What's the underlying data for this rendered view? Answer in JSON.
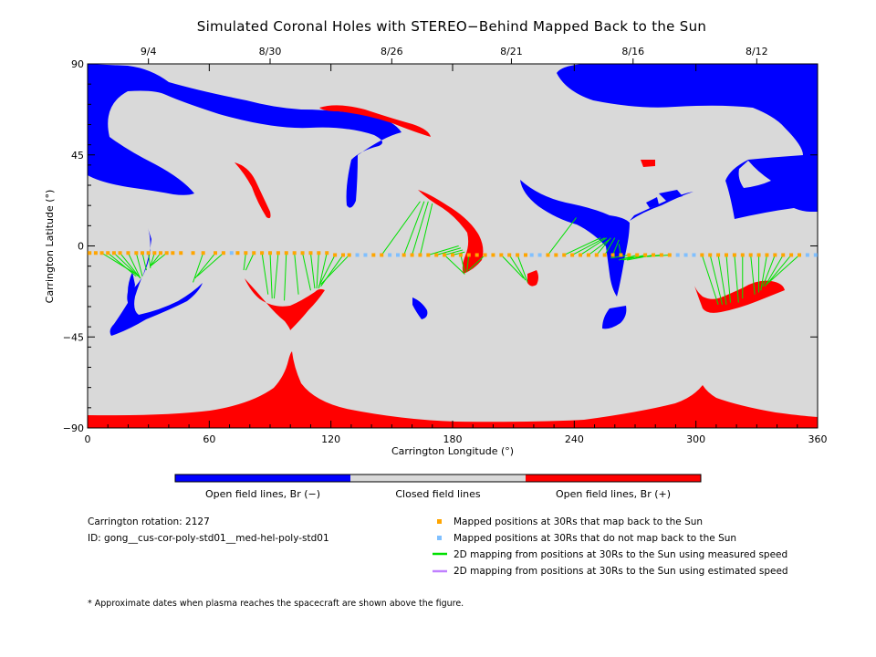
{
  "title": "Simulated Coronal Holes with STEREO−Behind Mapped Back to the Sun",
  "chart_data": {
    "type": "map",
    "xlabel": "Carrington Longitude (°)",
    "ylabel": "Carrington Latitude (°)",
    "xlim": [
      0,
      360
    ],
    "ylim": [
      -90,
      90
    ],
    "x_ticks": [
      "0",
      "60",
      "120",
      "180",
      "240",
      "300",
      "360"
    ],
    "y_ticks": [
      "90",
      "45",
      "0",
      "−45",
      "−90"
    ],
    "top_axis": [
      {
        "label": "9/4",
        "lon": 30
      },
      {
        "label": "8/30",
        "lon": 90
      },
      {
        "label": "8/26",
        "lon": 150
      },
      {
        "label": "8/21",
        "lon": 209
      },
      {
        "label": "8/16",
        "lon": 269
      },
      {
        "label": "8/12",
        "lon": 330
      }
    ],
    "colors": {
      "closed": "#d9d9d9",
      "open_negative": "#0000ff",
      "open_positive": "#ff0000",
      "mapped": "#ffa500",
      "unmapped": "#80c0ff",
      "measured_line": "#00e000",
      "estimated_line": "#c080ff"
    },
    "mapped_points": [
      {
        "lon": 1,
        "lat": -3.5,
        "maps": true
      },
      {
        "lon": 4,
        "lat": -3.5,
        "maps": true
      },
      {
        "lon": 7,
        "lat": -3.5,
        "maps": true
      },
      {
        "lon": 10,
        "lat": -3.5,
        "maps": true
      },
      {
        "lon": 13,
        "lat": -3.5,
        "maps": true
      },
      {
        "lon": 16,
        "lat": -3.5,
        "maps": true
      },
      {
        "lon": 20,
        "lat": -3.5,
        "maps": true
      },
      {
        "lon": 24,
        "lat": -3.5,
        "maps": true
      },
      {
        "lon": 27,
        "lat": -3.5,
        "maps": true
      },
      {
        "lon": 30,
        "lat": -3.5,
        "maps": true
      },
      {
        "lon": 33,
        "lat": -3.5,
        "maps": true
      },
      {
        "lon": 36,
        "lat": -3.5,
        "maps": true
      },
      {
        "lon": 39,
        "lat": -3.5,
        "maps": true
      },
      {
        "lon": 42,
        "lat": -3.5,
        "maps": true
      },
      {
        "lon": 46,
        "lat": -3.5,
        "maps": true
      },
      {
        "lon": 52,
        "lat": -3.5,
        "maps": true
      },
      {
        "lon": 57,
        "lat": -3.5,
        "maps": true
      },
      {
        "lon": 63,
        "lat": -3.5,
        "maps": true
      },
      {
        "lon": 67,
        "lat": -3.5,
        "maps": true
      },
      {
        "lon": 71,
        "lat": -3.5,
        "maps": false
      },
      {
        "lon": 74,
        "lat": -3.5,
        "maps": true
      },
      {
        "lon": 78,
        "lat": -3.5,
        "maps": true
      },
      {
        "lon": 82,
        "lat": -3.5,
        "maps": true
      },
      {
        "lon": 86,
        "lat": -3.5,
        "maps": true
      },
      {
        "lon": 90,
        "lat": -3.5,
        "maps": true
      },
      {
        "lon": 94,
        "lat": -3.5,
        "maps": true
      },
      {
        "lon": 98,
        "lat": -3.5,
        "maps": true
      },
      {
        "lon": 102,
        "lat": -3.5,
        "maps": true
      },
      {
        "lon": 106,
        "lat": -3.5,
        "maps": true
      },
      {
        "lon": 110,
        "lat": -3.5,
        "maps": true
      },
      {
        "lon": 114,
        "lat": -3.5,
        "maps": true
      },
      {
        "lon": 118,
        "lat": -3.5,
        "maps": true
      },
      {
        "lon": 122,
        "lat": -4.5,
        "maps": true
      },
      {
        "lon": 126,
        "lat": -4.5,
        "maps": true
      },
      {
        "lon": 129,
        "lat": -4.5,
        "maps": true
      },
      {
        "lon": 133,
        "lat": -4.5,
        "maps": false
      },
      {
        "lon": 137,
        "lat": -4.5,
        "maps": false
      },
      {
        "lon": 141,
        "lat": -4.5,
        "maps": true
      },
      {
        "lon": 145,
        "lat": -4.5,
        "maps": true
      },
      {
        "lon": 149,
        "lat": -4.5,
        "maps": false
      },
      {
        "lon": 153,
        "lat": -4.5,
        "maps": false
      },
      {
        "lon": 156,
        "lat": -4.5,
        "maps": true
      },
      {
        "lon": 160,
        "lat": -4.5,
        "maps": true
      },
      {
        "lon": 164,
        "lat": -4.5,
        "maps": true
      },
      {
        "lon": 168,
        "lat": -4.5,
        "maps": true
      },
      {
        "lon": 172,
        "lat": -4.5,
        "maps": true
      },
      {
        "lon": 176,
        "lat": -4.5,
        "maps": true
      },
      {
        "lon": 180,
        "lat": -4.5,
        "maps": true
      },
      {
        "lon": 184,
        "lat": -4.5,
        "maps": true
      },
      {
        "lon": 188,
        "lat": -4.5,
        "maps": true
      },
      {
        "lon": 192,
        "lat": -4.5,
        "maps": true
      },
      {
        "lon": 196,
        "lat": -4.5,
        "maps": true
      },
      {
        "lon": 200,
        "lat": -4.5,
        "maps": true
      },
      {
        "lon": 204,
        "lat": -4.5,
        "maps": true
      },
      {
        "lon": 208,
        "lat": -4.5,
        "maps": true
      },
      {
        "lon": 212,
        "lat": -4.5,
        "maps": true
      },
      {
        "lon": 216,
        "lat": -4.5,
        "maps": true
      },
      {
        "lon": 219,
        "lat": -4.5,
        "maps": false
      },
      {
        "lon": 223,
        "lat": -4.5,
        "maps": false
      },
      {
        "lon": 227,
        "lat": -4.5,
        "maps": true
      },
      {
        "lon": 231,
        "lat": -4.5,
        "maps": true
      },
      {
        "lon": 235,
        "lat": -4.5,
        "maps": true
      },
      {
        "lon": 239,
        "lat": -4.5,
        "maps": true
      },
      {
        "lon": 243,
        "lat": -4.5,
        "maps": true
      },
      {
        "lon": 247,
        "lat": -4.5,
        "maps": true
      },
      {
        "lon": 251,
        "lat": -4.5,
        "maps": true
      },
      {
        "lon": 255,
        "lat": -4.5,
        "maps": true
      },
      {
        "lon": 259,
        "lat": -4.5,
        "maps": true
      },
      {
        "lon": 263,
        "lat": -4.5,
        "maps": true
      },
      {
        "lon": 267,
        "lat": -4.5,
        "maps": true
      },
      {
        "lon": 271,
        "lat": -4.5,
        "maps": true
      },
      {
        "lon": 275,
        "lat": -4.5,
        "maps": true
      },
      {
        "lon": 279,
        "lat": -4.5,
        "maps": true
      },
      {
        "lon": 283,
        "lat": -4.5,
        "maps": true
      },
      {
        "lon": 287,
        "lat": -4.5,
        "maps": true
      },
      {
        "lon": 291,
        "lat": -4.5,
        "maps": false
      },
      {
        "lon": 295,
        "lat": -4.5,
        "maps": false
      },
      {
        "lon": 299,
        "lat": -4.5,
        "maps": false
      },
      {
        "lon": 303,
        "lat": -4.5,
        "maps": true
      },
      {
        "lon": 307,
        "lat": -4.5,
        "maps": true
      },
      {
        "lon": 311,
        "lat": -4.5,
        "maps": true
      },
      {
        "lon": 315,
        "lat": -4.5,
        "maps": true
      },
      {
        "lon": 319,
        "lat": -4.5,
        "maps": true
      },
      {
        "lon": 323,
        "lat": -4.5,
        "maps": true
      },
      {
        "lon": 327,
        "lat": -4.5,
        "maps": true
      },
      {
        "lon": 331,
        "lat": -4.5,
        "maps": true
      },
      {
        "lon": 335,
        "lat": -4.5,
        "maps": true
      },
      {
        "lon": 339,
        "lat": -4.5,
        "maps": true
      },
      {
        "lon": 343,
        "lat": -4.5,
        "maps": true
      },
      {
        "lon": 347,
        "lat": -4.5,
        "maps": true
      },
      {
        "lon": 351,
        "lat": -4.5,
        "maps": true
      },
      {
        "lon": 355,
        "lat": -4.5,
        "maps": false
      },
      {
        "lon": 359,
        "lat": -4.5,
        "maps": false
      }
    ],
    "mapping_lines": [
      {
        "from": [
          7,
          -3.5
        ],
        "to": [
          24,
          -14
        ]
      },
      {
        "from": [
          10,
          -3.5
        ],
        "to": [
          24,
          -15
        ]
      },
      {
        "from": [
          13,
          -3.5
        ],
        "to": [
          25,
          -15
        ]
      },
      {
        "from": [
          16,
          -3.5
        ],
        "to": [
          26,
          -16
        ]
      },
      {
        "from": [
          20,
          -3.5
        ],
        "to": [
          26,
          -16
        ]
      },
      {
        "from": [
          24,
          -3.5
        ],
        "to": [
          27,
          -15
        ]
      },
      {
        "from": [
          27,
          -3.5
        ],
        "to": [
          29,
          -12
        ]
      },
      {
        "from": [
          30,
          -3.5
        ],
        "to": [
          31,
          -11
        ]
      },
      {
        "from": [
          33,
          -3.5
        ],
        "to": [
          31,
          -10
        ]
      },
      {
        "from": [
          36,
          -3.5
        ],
        "to": [
          31,
          -10
        ]
      },
      {
        "from": [
          39,
          -3.5
        ],
        "to": [
          31,
          -10
        ]
      },
      {
        "from": [
          57,
          -3.5
        ],
        "to": [
          52,
          -18
        ]
      },
      {
        "from": [
          63,
          -3.5
        ],
        "to": [
          53,
          -16
        ]
      },
      {
        "from": [
          67,
          -3.5
        ],
        "to": [
          54,
          -15
        ]
      },
      {
        "from": [
          78,
          -3.5
        ],
        "to": [
          77,
          -12
        ]
      },
      {
        "from": [
          82,
          -3.5
        ],
        "to": [
          78,
          -12
        ]
      },
      {
        "from": [
          86,
          -3.5
        ],
        "to": [
          89,
          -24
        ]
      },
      {
        "from": [
          90,
          -3.5
        ],
        "to": [
          91,
          -26
        ]
      },
      {
        "from": [
          94,
          -3.5
        ],
        "to": [
          92,
          -26
        ]
      },
      {
        "from": [
          98,
          -3.5
        ],
        "to": [
          97,
          -27
        ]
      },
      {
        "from": [
          102,
          -3.5
        ],
        "to": [
          104,
          -24
        ]
      },
      {
        "from": [
          106,
          -3.5
        ],
        "to": [
          110,
          -22
        ]
      },
      {
        "from": [
          110,
          -3.5
        ],
        "to": [
          112,
          -21
        ]
      },
      {
        "from": [
          114,
          -3.5
        ],
        "to": [
          113,
          -21
        ]
      },
      {
        "from": [
          118,
          -3.5
        ],
        "to": [
          114,
          -21
        ]
      },
      {
        "from": [
          122,
          -4.5
        ],
        "to": [
          114,
          -20
        ]
      },
      {
        "from": [
          126,
          -4.5
        ],
        "to": [
          115,
          -20
        ]
      },
      {
        "from": [
          129,
          -4.5
        ],
        "to": [
          115,
          -19
        ]
      },
      {
        "from": [
          145,
          -4.5
        ],
        "to": [
          164,
          22
        ]
      },
      {
        "from": [
          156,
          -4.5
        ],
        "to": [
          166,
          22
        ]
      },
      {
        "from": [
          160,
          -4.5
        ],
        "to": [
          168,
          22
        ]
      },
      {
        "from": [
          164,
          -4.5
        ],
        "to": [
          170,
          21
        ]
      },
      {
        "from": [
          168,
          -4.5
        ],
        "to": [
          183,
          0
        ]
      },
      {
        "from": [
          172,
          -4.5
        ],
        "to": [
          184,
          -1
        ]
      },
      {
        "from": [
          176,
          -4.5
        ],
        "to": [
          185,
          -2
        ]
      },
      {
        "from": [
          180,
          -4.5
        ],
        "to": [
          186,
          -3
        ]
      },
      {
        "from": [
          176,
          -4.5
        ],
        "to": [
          186,
          -14
        ]
      },
      {
        "from": [
          184,
          -4.5
        ],
        "to": [
          186,
          -13
        ]
      },
      {
        "from": [
          188,
          -4.5
        ],
        "to": [
          187,
          -13
        ]
      },
      {
        "from": [
          196,
          -4.5
        ],
        "to": [
          188,
          -12
        ]
      },
      {
        "from": [
          204,
          -4.5
        ],
        "to": [
          215,
          -16
        ]
      },
      {
        "from": [
          208,
          -4.5
        ],
        "to": [
          216,
          -17
        ]
      },
      {
        "from": [
          212,
          -4.5
        ],
        "to": [
          217,
          -18
        ]
      },
      {
        "from": [
          227,
          -4.5
        ],
        "to": [
          241,
          14
        ]
      },
      {
        "from": [
          235,
          -4.5
        ],
        "to": [
          253,
          4
        ]
      },
      {
        "from": [
          239,
          -4.5
        ],
        "to": [
          255,
          4
        ]
      },
      {
        "from": [
          243,
          -4.5
        ],
        "to": [
          256,
          4
        ]
      },
      {
        "from": [
          247,
          -4.5
        ],
        "to": [
          257,
          3
        ]
      },
      {
        "from": [
          251,
          -4.5
        ],
        "to": [
          258,
          4
        ]
      },
      {
        "from": [
          255,
          -4.5
        ],
        "to": [
          260,
          4
        ]
      },
      {
        "from": [
          259,
          -4.5
        ],
        "to": [
          262,
          3
        ]
      },
      {
        "from": [
          263,
          -4.5
        ],
        "to": [
          262,
          1
        ]
      },
      {
        "from": [
          267,
          -4.5
        ],
        "to": [
          258,
          -6
        ]
      },
      {
        "from": [
          271,
          -4.5
        ],
        "to": [
          262,
          -7
        ]
      },
      {
        "from": [
          275,
          -4.5
        ],
        "to": [
          264,
          -7
        ]
      },
      {
        "from": [
          279,
          -4.5
        ],
        "to": [
          266,
          -7
        ]
      },
      {
        "from": [
          283,
          -4.5
        ],
        "to": [
          266,
          -6
        ]
      },
      {
        "from": [
          287,
          -4.5
        ],
        "to": [
          265,
          -6
        ]
      },
      {
        "from": [
          303,
          -4.5
        ],
        "to": [
          311,
          -29
        ]
      },
      {
        "from": [
          307,
          -4.5
        ],
        "to": [
          313,
          -29
        ]
      },
      {
        "from": [
          311,
          -4.5
        ],
        "to": [
          315,
          -29
        ]
      },
      {
        "from": [
          315,
          -4.5
        ],
        "to": [
          317,
          -28
        ]
      },
      {
        "from": [
          319,
          -4.5
        ],
        "to": [
          321,
          -28
        ]
      },
      {
        "from": [
          323,
          -4.5
        ],
        "to": [
          323,
          -26
        ]
      },
      {
        "from": [
          327,
          -4.5
        ],
        "to": [
          329,
          -24
        ]
      },
      {
        "from": [
          331,
          -4.5
        ],
        "to": [
          331,
          -23
        ]
      },
      {
        "from": [
          335,
          -4.5
        ],
        "to": [
          332,
          -22
        ]
      },
      {
        "from": [
          339,
          -4.5
        ],
        "to": [
          333,
          -20
        ]
      },
      {
        "from": [
          343,
          -4.5
        ],
        "to": [
          334,
          -20
        ]
      },
      {
        "from": [
          347,
          -4.5
        ],
        "to": [
          335,
          -19
        ]
      },
      {
        "from": [
          351,
          -4.5
        ],
        "to": [
          336,
          -18
        ]
      }
    ]
  },
  "colorbar": {
    "labels": [
      "Open field lines, Br (−)",
      "Closed field lines",
      "Open field lines, Br (+)"
    ]
  },
  "info": {
    "rotation": "Carrington rotation: 2127",
    "id": "ID: gong__cus-cor-poly-std01__med-hel-poly-std01"
  },
  "legend": [
    {
      "label": "Mapped positions at 30Rs that map back to the Sun",
      "kind": "square",
      "color": "#ffa500"
    },
    {
      "label": "Mapped positions at 30Rs that do not map back to the Sun",
      "kind": "square",
      "color": "#80c0ff"
    },
    {
      "label": "2D mapping from positions at 30Rs to the Sun using measured speed",
      "kind": "line",
      "color": "#00e000"
    },
    {
      "label": "2D mapping from positions at 30Rs to the Sun using estimated speed",
      "kind": "line",
      "color": "#c080ff"
    }
  ],
  "footnote": "* Approximate dates when plasma reaches the spacecraft are shown above the figure."
}
